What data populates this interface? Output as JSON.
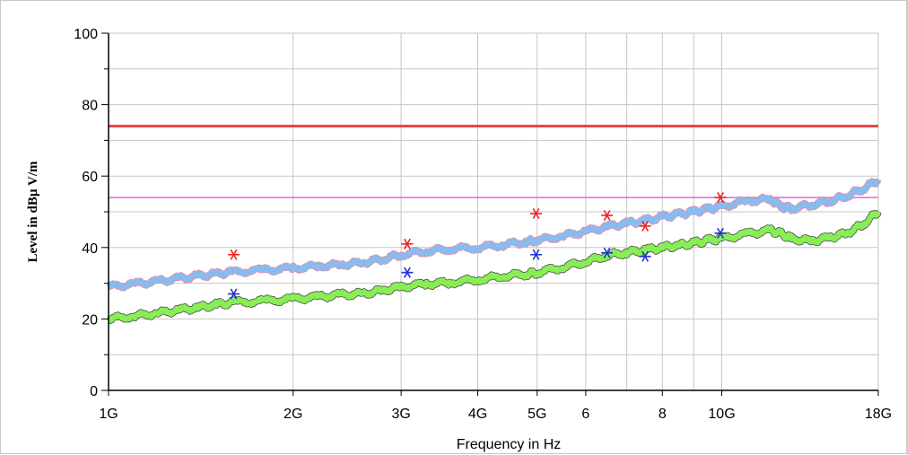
{
  "chart_data": {
    "type": "line",
    "title": "",
    "xlabel": "Frequency in Hz",
    "ylabel": "Level in dBµ V/m",
    "x_scale": "log",
    "xlim_ghz": [
      1,
      18
    ],
    "ylim": [
      0,
      100
    ],
    "x_ticks": [
      {
        "value": 1,
        "label": "1G"
      },
      {
        "value": 2,
        "label": "2G"
      },
      {
        "value": 3,
        "label": "3G"
      },
      {
        "value": 4,
        "label": "4G"
      },
      {
        "value": 5,
        "label": "5G"
      },
      {
        "value": 6,
        "label": "6"
      },
      {
        "value": 8,
        "label": "8"
      },
      {
        "value": 10,
        "label": "10G"
      },
      {
        "value": 18,
        "label": "18G"
      }
    ],
    "x_minor_gridlines": [
      7,
      9
    ],
    "y_ticks": [
      {
        "value": 0,
        "label": "0"
      },
      {
        "value": 20,
        "label": "20"
      },
      {
        "value": 40,
        "label": "40"
      },
      {
        "value": 60,
        "label": "60"
      },
      {
        "value": 80,
        "label": "80"
      },
      {
        "value": 100,
        "label": "100"
      }
    ],
    "y_minor_gridlines": [
      10,
      30,
      50,
      70,
      90
    ],
    "grid": true,
    "limit_lines": [
      {
        "value": 74,
        "color": "#ee4444",
        "width": 3
      },
      {
        "value": 54,
        "color": "#dd66dd",
        "width": 1.5
      }
    ],
    "series": [
      {
        "color": "#88bbee",
        "edge_color": "#ee7799",
        "x": [
          1,
          1.1,
          1.2,
          1.3,
          1.4,
          1.5,
          1.6,
          1.8,
          2.0,
          2.2,
          2.4,
          2.6,
          2.8,
          3.0,
          3.3,
          3.6,
          4.0,
          4.4,
          4.8,
          5.0,
          5.5,
          6.0,
          6.5,
          7.0,
          7.5,
          8.0,
          8.5,
          9.0,
          9.5,
          10.0,
          11.0,
          12.0,
          12.5,
          13.0,
          14.0,
          15.0,
          16.0,
          17.0,
          18.0
        ],
        "y": [
          29,
          29.8,
          30.5,
          31.3,
          32,
          32.6,
          33.2,
          33.7,
          34.2,
          34.8,
          35.2,
          35.8,
          36.8,
          38,
          39,
          39.6,
          40,
          40.8,
          41.6,
          42,
          43.2,
          44.5,
          45.8,
          46.8,
          47.5,
          48.5,
          49.3,
          50,
          50.8,
          51.5,
          53,
          53.5,
          51.5,
          51,
          52,
          53,
          54.5,
          56.5,
          59
        ]
      },
      {
        "color": "#88ee55",
        "edge_color": "#222222",
        "x": [
          1,
          1.1,
          1.2,
          1.3,
          1.4,
          1.5,
          1.6,
          1.8,
          2.0,
          2.2,
          2.4,
          2.6,
          2.8,
          3.0,
          3.3,
          3.6,
          4.0,
          4.4,
          4.8,
          5.0,
          5.5,
          6.0,
          6.5,
          7.0,
          7.5,
          8.0,
          8.5,
          9.0,
          9.5,
          10.0,
          11.0,
          12.0,
          12.5,
          13.0,
          14.0,
          15.0,
          16.0,
          17.0,
          18.0
        ],
        "y": [
          20,
          20.8,
          21.6,
          22.5,
          23.2,
          24,
          24.6,
          25,
          25.6,
          26.2,
          26.8,
          27,
          28,
          29,
          29.8,
          30.2,
          31,
          32,
          32.6,
          33,
          34.5,
          36,
          37.8,
          38.6,
          39.3,
          40,
          40.6,
          41.2,
          42,
          42.5,
          43.8,
          44.8,
          43.8,
          42.5,
          41.8,
          42.8,
          44,
          46.5,
          50
        ]
      }
    ],
    "markers": [
      {
        "x": 1.6,
        "y": 38,
        "color": "#ee2222"
      },
      {
        "x": 3.07,
        "y": 41,
        "color": "#ee2222"
      },
      {
        "x": 4.98,
        "y": 49.5,
        "color": "#ee2222"
      },
      {
        "x": 6.5,
        "y": 49,
        "color": "#ee2222"
      },
      {
        "x": 7.5,
        "y": 46,
        "color": "#ee2222"
      },
      {
        "x": 9.95,
        "y": 54,
        "color": "#ee2222"
      },
      {
        "x": 1.6,
        "y": 27,
        "color": "#2233cc"
      },
      {
        "x": 3.07,
        "y": 33,
        "color": "#2233cc"
      },
      {
        "x": 4.98,
        "y": 38,
        "color": "#2233cc"
      },
      {
        "x": 6.5,
        "y": 38.5,
        "color": "#2233cc"
      },
      {
        "x": 7.5,
        "y": 37.5,
        "color": "#2233cc"
      },
      {
        "x": 9.95,
        "y": 44,
        "color": "#2233cc"
      }
    ]
  }
}
